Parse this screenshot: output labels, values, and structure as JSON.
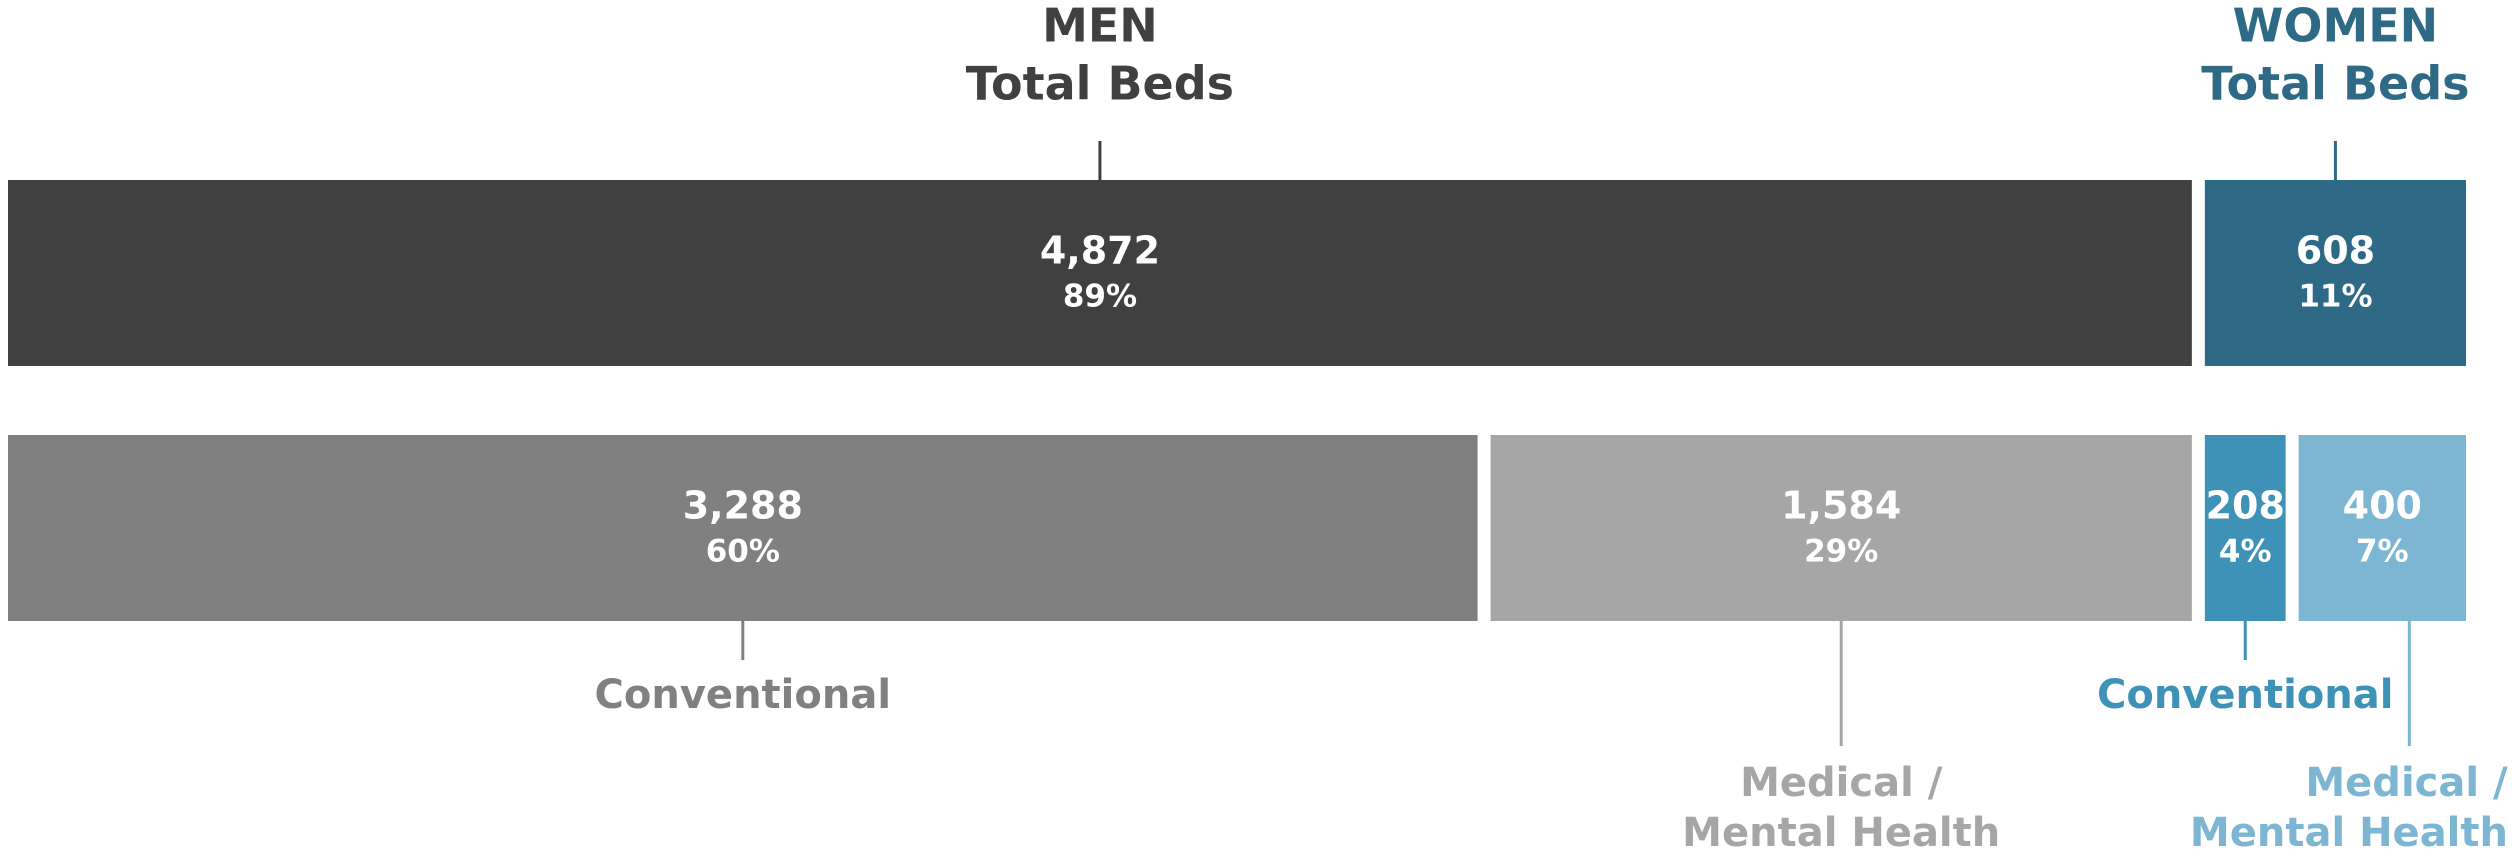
{
  "chart_data": {
    "type": "stacked-bar",
    "rows": [
      {
        "position": "above",
        "segments": [
          {
            "name_lines": [
              "MEN",
              "Total Beds"
            ],
            "value": 4872,
            "value_label": "4,872",
            "share": 89,
            "share_label": "89%",
            "color": "#404040"
          },
          {
            "name_lines": [
              "WOMEN",
              "Total Beds"
            ],
            "value": 608,
            "value_label": "608",
            "share": 11,
            "share_label": "11%",
            "color": "#2e6a85"
          }
        ]
      },
      {
        "position": "below",
        "segments": [
          {
            "name_lines": [
              "Conventional"
            ],
            "value": 3288,
            "value_label": "3,288",
            "share": 60,
            "share_label": "60%",
            "color": "#808080"
          },
          {
            "name_lines": [
              "Medical /",
              "Mental Health"
            ],
            "value": 1584,
            "value_label": "1,584",
            "share": 29,
            "share_label": "29%",
            "color": "#a6a6a6"
          },
          {
            "name_lines": [
              "Conventional"
            ],
            "value": 208,
            "value_label": "208",
            "share": 4,
            "share_label": "4%",
            "color": "#3e92b8"
          },
          {
            "name_lines": [
              "Medical /",
              "Mental Health"
            ],
            "value": 400,
            "value_label": "400",
            "share": 7,
            "share_label": "7%",
            "color": "#7db6d3"
          }
        ]
      }
    ]
  }
}
